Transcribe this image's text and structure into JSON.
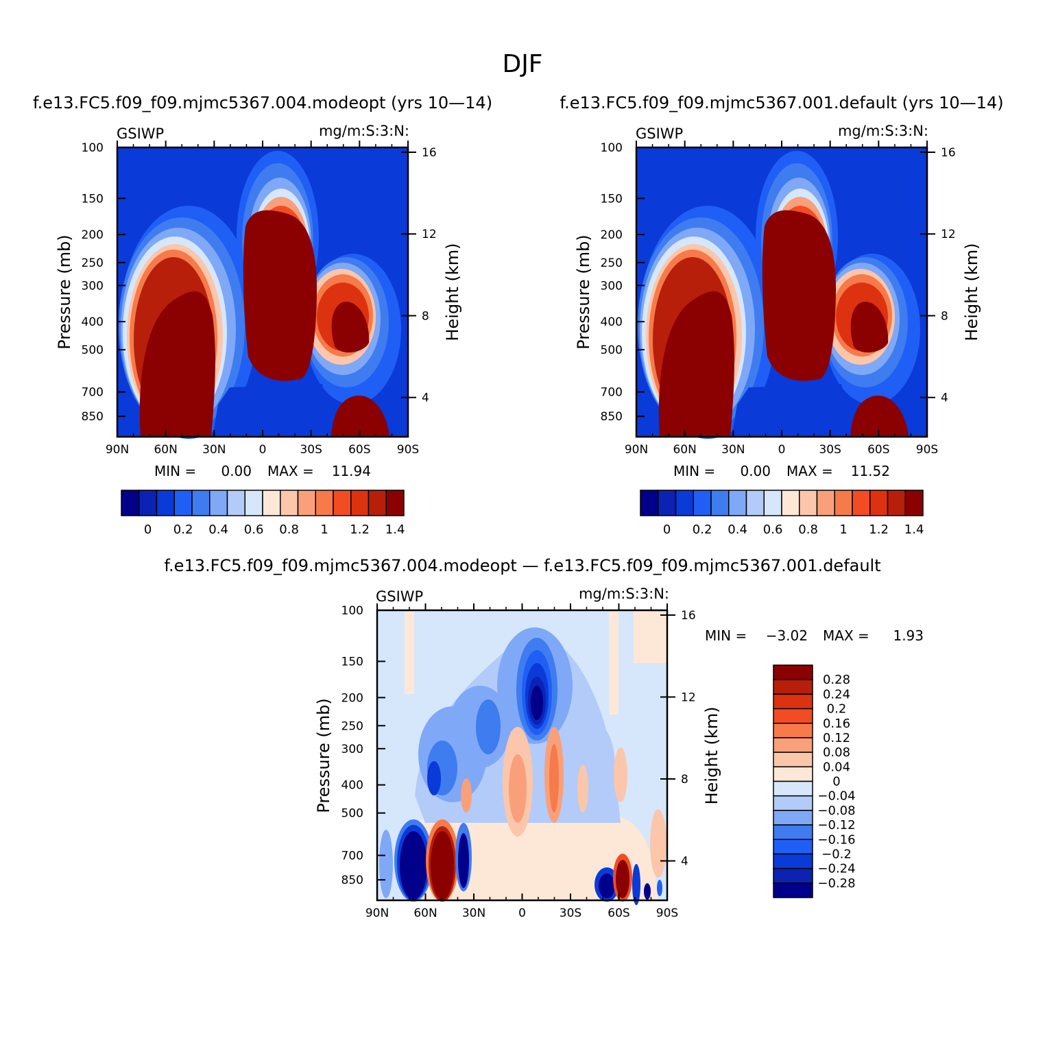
{
  "figure": {
    "title": "DJF"
  },
  "colors": {
    "abs_scale": [
      "#00008b",
      "#0b22b2",
      "#0a3ad8",
      "#1f5ff5",
      "#3e7cf0",
      "#7fa8f7",
      "#b3cbf8",
      "#d6e7fb",
      "#fde8d8",
      "#fcc6ab",
      "#f9a07a",
      "#f67a4a",
      "#f24d22",
      "#dd3210",
      "#b81f0a",
      "#8b0000"
    ],
    "diff_scale": [
      "#00008b",
      "#0b22b2",
      "#0a3ad8",
      "#1f5ff5",
      "#3e7cf0",
      "#7fa8f7",
      "#b3cbf8",
      "#d6e7fb",
      "#fde8d8",
      "#fcc6ab",
      "#f9a07a",
      "#f67a4a",
      "#f24d22",
      "#dd3210",
      "#b81f0a",
      "#8b0000"
    ]
  },
  "chart_data": [
    {
      "type": "heatmap",
      "id": "panel-modeopt",
      "title": "f.e13.FC5.f09_f09.mjmc5367.004.modeopt (yrs 10—14)",
      "variable": "GSIWP",
      "units": "mg/m:S:3:N:",
      "xlabel": "",
      "ylabel": "Pressure (mb)",
      "y2label": "Height (km)",
      "x_ticks": [
        "90N",
        "60N",
        "30N",
        "0",
        "30S",
        "60S",
        "90S"
      ],
      "y_ticks": [
        100,
        150,
        200,
        250,
        300,
        400,
        500,
        700,
        850
      ],
      "y2_ticks": [
        16,
        12,
        8,
        4
      ],
      "min_label": "MIN =",
      "min": "0.00",
      "max_label": "MAX =",
      "max": "11.94",
      "colorbar_levels": [
        "0",
        "0.2",
        "0.4",
        "0.6",
        "0.8",
        "1",
        "1.2",
        "1.4"
      ]
    },
    {
      "type": "heatmap",
      "id": "panel-default",
      "title": "f.e13.FC5.f09_f09.mjmc5367.001.default (yrs 10—14)",
      "variable": "GSIWP",
      "units": "mg/m:S:3:N:",
      "xlabel": "",
      "ylabel": "Pressure (mb)",
      "y2label": "Height (km)",
      "x_ticks": [
        "90N",
        "60N",
        "30N",
        "0",
        "30S",
        "60S",
        "90S"
      ],
      "y_ticks": [
        100,
        150,
        200,
        250,
        300,
        400,
        500,
        700,
        850
      ],
      "y2_ticks": [
        16,
        12,
        8,
        4
      ],
      "min_label": "MIN =",
      "min": "0.00",
      "max_label": "MAX =",
      "max": "11.52",
      "colorbar_levels": [
        "0",
        "0.2",
        "0.4",
        "0.6",
        "0.8",
        "1",
        "1.2",
        "1.4"
      ]
    },
    {
      "type": "heatmap",
      "id": "panel-diff",
      "title": "f.e13.FC5.f09_f09.mjmc5367.004.modeopt — f.e13.FC5.f09_f09.mjmc5367.001.default",
      "variable": "GSIWP",
      "units": "mg/m:S:3:N:",
      "xlabel": "",
      "ylabel": "Pressure (mb)",
      "y2label": "Height (km)",
      "x_ticks": [
        "90N",
        "60N",
        "30N",
        "0",
        "30S",
        "60S",
        "90S"
      ],
      "y_ticks": [
        100,
        150,
        200,
        250,
        300,
        400,
        500,
        700,
        850
      ],
      "y2_ticks": [
        16,
        12,
        8,
        4
      ],
      "min_label": "MIN =",
      "min": "−3.02",
      "max_label": "MAX =",
      "max": "1.93",
      "colorbar_levels": [
        "0.28",
        "0.24",
        "0.2",
        "0.16",
        "0.12",
        "0.08",
        "0.04",
        "0",
        "−0.04",
        "−0.08",
        "−0.12",
        "−0.16",
        "−0.2",
        "−0.24",
        "−0.28"
      ]
    }
  ]
}
